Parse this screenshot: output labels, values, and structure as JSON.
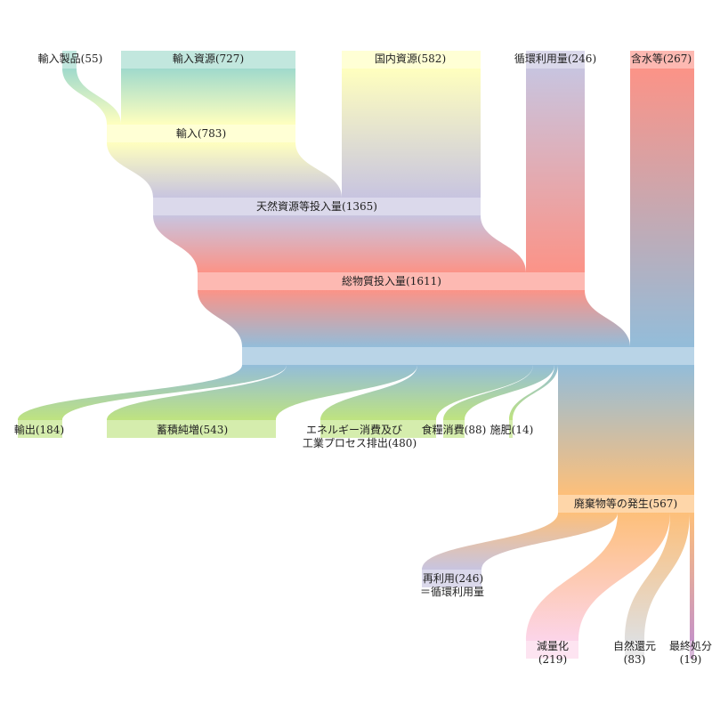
{
  "nodes": {
    "import_products": {
      "label": "輸入製品(55)",
      "value": 55,
      "color": "#8fd3c3"
    },
    "import_resources": {
      "label": "輸入資源(727)",
      "value": 727,
      "color": "#8fd3c3"
    },
    "domestic": {
      "label": "国内資源(582)",
      "value": 582,
      "color": "#ffffb3"
    },
    "recycled_input": {
      "label": "循環利用量(246)",
      "value": 246,
      "color": "#bebada"
    },
    "water": {
      "label": "含水等(267)",
      "value": 267,
      "color": "#fb8072"
    },
    "imports": {
      "label": "輸入(783)",
      "value": 783,
      "color": "#ffffb3"
    },
    "natural_input": {
      "label": "天然資源等投入量(1365)",
      "value": 1365,
      "color": "#bebada"
    },
    "total_input": {
      "label": "総物質投入量(1611)",
      "value": 1611,
      "color": "#fb8072"
    },
    "hub": {
      "label": "",
      "value": 1878,
      "color": "#80b1d3"
    },
    "export": {
      "label": "輸出(184)",
      "value": 184,
      "color": "#b3de69"
    },
    "stock": {
      "label": "蓄積純増(543)",
      "value": 543,
      "color": "#b3de69"
    },
    "energy_line1": {
      "label": "エネルギー消費及び",
      "value": 480,
      "color": "#b3de69"
    },
    "energy_line2": {
      "label": "工業プロセス排出(480)"
    },
    "food": {
      "label": "食糧消費(88)",
      "value": 88,
      "color": "#b3de69"
    },
    "fertilizer": {
      "label": "施肥(14)",
      "value": 14,
      "color": "#b3de69"
    },
    "waste": {
      "label": "廃棄物等の発生(567)",
      "value": 567,
      "color": "#fdb462"
    },
    "reuse_line1": {
      "label": "再利用(246)",
      "value": 246,
      "color": "#bebada"
    },
    "reuse_line2": {
      "label": "＝循環利用量"
    },
    "reduction_line1": {
      "label": "減量化",
      "value": 219,
      "color": "#fccde5"
    },
    "reduction_line2": {
      "label": "(219)"
    },
    "natural_return_line1": {
      "label": "自然還元",
      "value": 83,
      "color": "#d9d9d9"
    },
    "natural_return_line2": {
      "label": "(83)"
    },
    "final_disposal_line1": {
      "label": "最終処分",
      "value": 19,
      "color": "#bc80bd"
    },
    "final_disposal_line2": {
      "label": "(19)"
    }
  }
}
